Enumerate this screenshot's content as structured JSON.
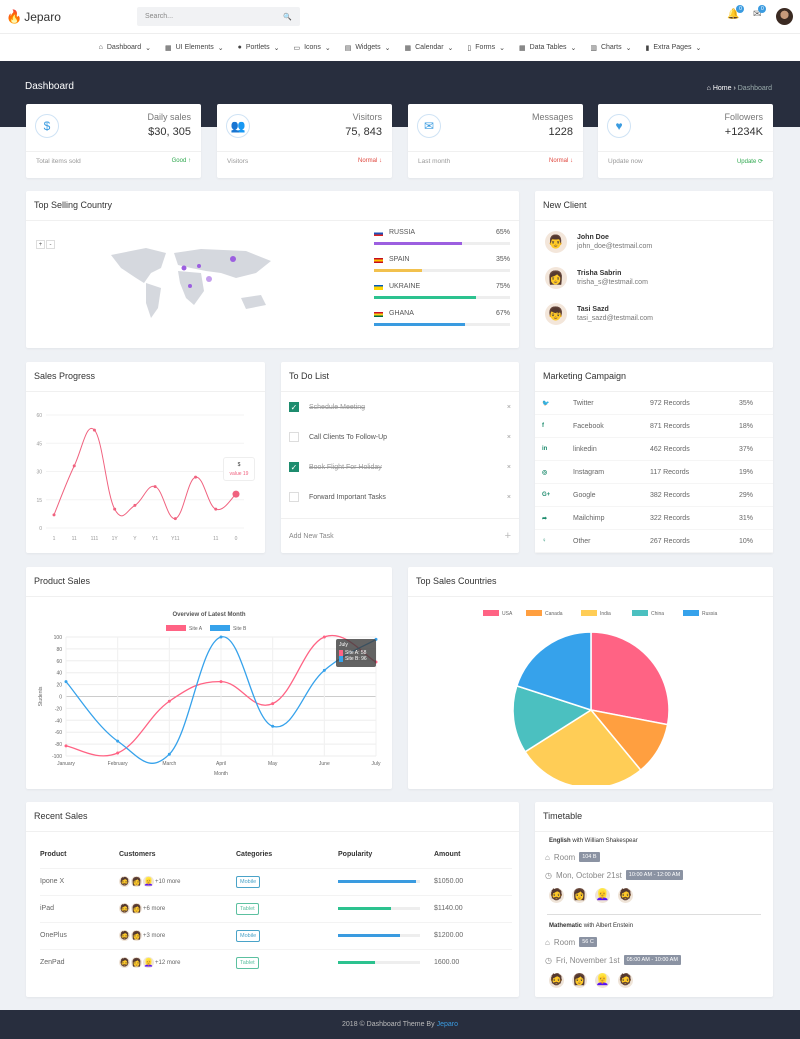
{
  "app": {
    "name": "Jeparo",
    "search_placeholder": "Search...",
    "notif_count": "0",
    "mail_count": "0"
  },
  "nav": [
    "Dashboard",
    "UI Elements",
    "Portlets",
    "Icons",
    "Widgets",
    "Calendar",
    "Forms",
    "Data Tables",
    "Charts",
    "Extra Pages"
  ],
  "header": {
    "title": "Dashboard",
    "crumb_home": "Home",
    "crumb_current": "Dashboard"
  },
  "stats": [
    {
      "label": "Daily sales",
      "value": "$30, 305",
      "sub": "Total items sold",
      "status": "Good ↑",
      "status_color": "#2fa84f",
      "icon": "$"
    },
    {
      "label": "Visitors",
      "value": "75, 843",
      "sub": "Visitors",
      "status": "Normal ↓",
      "status_color": "#e0473e",
      "icon": "👥"
    },
    {
      "label": "Messages",
      "value": "1228",
      "sub": "Last month",
      "status": "Normal ↓",
      "status_color": "#e0473e",
      "icon": "✉"
    },
    {
      "label": "Followers",
      "value": "+1234K",
      "sub": "Update now",
      "status": "Update ⟳",
      "status_color": "#2fa84f",
      "icon": "♥"
    }
  ],
  "top_selling": {
    "title": "Top Selling Country",
    "zoom_in": "+",
    "zoom_out": "-",
    "countries": [
      {
        "name": "RUSSIA",
        "pct": "65%",
        "value": 65,
        "color": "#9c5fe0"
      },
      {
        "name": "SPAIN",
        "pct": "35%",
        "value": 35,
        "color": "#f2c14e"
      },
      {
        "name": "UKRAINE",
        "pct": "75%",
        "value": 75,
        "color": "#2cc28f"
      },
      {
        "name": "GHANA",
        "pct": "67%",
        "value": 67,
        "color": "#3a9be0"
      }
    ]
  },
  "new_client": {
    "title": "New Client",
    "clients": [
      {
        "name": "John Doe",
        "email": "john_doe@testmail.com"
      },
      {
        "name": "Trisha Sabrin",
        "email": "trisha_s@testmail.com"
      },
      {
        "name": "Tasi Sazd",
        "email": "tasi_sazd@testmail.com"
      }
    ]
  },
  "sales_progress": {
    "title": "Sales Progress",
    "tooltip_title": "$",
    "tooltip_label": "value",
    "tooltip_value": "19"
  },
  "todo": {
    "title": "To Do List",
    "add_label": "Add New Task",
    "items": [
      {
        "text": "Schedule Meeting",
        "done": true
      },
      {
        "text": "Call Clients To Follow-Up",
        "done": false
      },
      {
        "text": "Book Flight For Holiday",
        "done": true
      },
      {
        "text": "Forward Important Tasks",
        "done": false
      }
    ]
  },
  "marketing": {
    "title": "Marketing Campaign",
    "rows": [
      {
        "icon": "twitter",
        "glyph": "🐦",
        "name": "Twitter",
        "records": "972 Records",
        "pct": "35%"
      },
      {
        "icon": "facebook",
        "glyph": "f",
        "name": "Facebook",
        "records": "871 Records",
        "pct": "18%"
      },
      {
        "icon": "linkedin",
        "glyph": "in",
        "name": "linkedin",
        "records": "462 Records",
        "pct": "37%"
      },
      {
        "icon": "instagram",
        "glyph": "◎",
        "name": "Instagram",
        "records": "117 Records",
        "pct": "19%"
      },
      {
        "icon": "google-plus",
        "glyph": "G+",
        "name": "Google",
        "records": "382 Records",
        "pct": "29%"
      },
      {
        "icon": "mailchimp",
        "glyph": "➦",
        "name": "Mailchimp",
        "records": "322 Records",
        "pct": "31%"
      },
      {
        "icon": "other",
        "glyph": "♀",
        "name": "Other",
        "records": "267 Records",
        "pct": "10%"
      }
    ]
  },
  "product_sales": {
    "title": "Product Sales",
    "tooltip": {
      "title": "July",
      "a": "Site A: 58",
      "b": "Site B: 96"
    }
  },
  "top_sales_countries": {
    "title": "Top Sales Countries"
  },
  "recent_sales": {
    "title": "Recent Sales",
    "headers": [
      "Product",
      "Customers",
      "Categories",
      "Popularity",
      "Amount"
    ],
    "rows": [
      {
        "product": "Ipone X",
        "faces": 3,
        "more": "+10 more",
        "category": "Mobile",
        "cat_type": "b",
        "popularity": 95,
        "color": "#3a9be0",
        "amount": "$1050.00"
      },
      {
        "product": "iPad",
        "faces": 2,
        "more": "+6 more",
        "category": "Tablet",
        "cat_type": "g",
        "popularity": 65,
        "color": "#2cc28f",
        "amount": "$1140.00"
      },
      {
        "product": "OnePlus",
        "faces": 2,
        "more": "+3 more",
        "category": "Mobile",
        "cat_type": "b",
        "popularity": 75,
        "color": "#3a9be0",
        "amount": "$1200.00"
      },
      {
        "product": "ZenPad",
        "faces": 3,
        "more": "+12 more",
        "category": "Tablet",
        "cat_type": "g",
        "popularity": 45,
        "color": "#2cc28f",
        "amount": "1600.00"
      }
    ]
  },
  "timetable": {
    "title": "Timetable",
    "room_label": "Room",
    "entries": [
      {
        "subject": "English",
        "with": "with William Shakespear",
        "room": "104 B",
        "date": "Mon, October 21st",
        "time": "10:00 AM - 12:00 AM"
      },
      {
        "subject": "Mathematic",
        "with": "with Albert Enstein",
        "room": "56 C",
        "date": "Fri, November 1st",
        "time": "05:00 AM - 10:00 AM"
      }
    ]
  },
  "footer": {
    "text": "2018 © Dashboard Theme By",
    "link": "Jeparo"
  },
  "chart_data": [
    {
      "type": "line",
      "title": "Sales Progress",
      "categories": [
        "1",
        "11",
        "111",
        "1Y",
        "Y",
        "Y1",
        "Y11",
        "",
        "11",
        "0"
      ],
      "values": [
        7,
        33,
        52,
        10,
        12,
        22,
        5,
        27,
        10,
        18
      ],
      "yticks": [
        0,
        15,
        30,
        45,
        60
      ],
      "ylim": [
        0,
        60
      ],
      "color": "#f0627f"
    },
    {
      "type": "line",
      "title": "Overview of Latest Month",
      "xlabel": "Month",
      "ylabel": "Students",
      "categories": [
        "January",
        "February",
        "March",
        "April",
        "May",
        "June",
        "July"
      ],
      "ylim": [
        -100,
        100
      ],
      "yticks": [
        100,
        80,
        60,
        40,
        20,
        0,
        -20,
        -40,
        -60,
        -80,
        -100
      ],
      "legend": "top",
      "series": [
        {
          "name": "Site A",
          "color": "#ff6384",
          "values": [
            -83,
            -95,
            -8,
            25,
            -12,
            100,
            58
          ]
        },
        {
          "name": "Site B",
          "color": "#36a2eb",
          "values": [
            25,
            -75,
            -97,
            100,
            -50,
            44,
            96
          ]
        }
      ]
    },
    {
      "type": "pie",
      "title": "Top Sales Countries",
      "legend": "top",
      "labels": [
        "USA",
        "Canada",
        "India",
        "China",
        "Russia"
      ],
      "values": [
        28,
        11,
        27,
        14,
        20
      ],
      "colors": [
        "#ff6384",
        "#ff9f40",
        "#ffcd56",
        "#4bc0c0",
        "#36a2eb"
      ]
    }
  ]
}
